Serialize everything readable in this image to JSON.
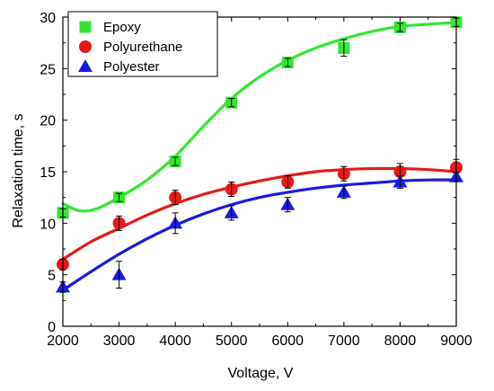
{
  "chart_data": {
    "type": "scatter",
    "xlabel": "Voltage, V",
    "ylabel": "Relaxation time, s",
    "xlim": [
      2000,
      9000
    ],
    "ylim": [
      0,
      30
    ],
    "xticks": [
      2000,
      3000,
      4000,
      5000,
      6000,
      7000,
      8000,
      9000
    ],
    "yticks": [
      0,
      5,
      10,
      15,
      20,
      25,
      30
    ],
    "legend_position": "top-left",
    "grid": false,
    "series": [
      {
        "name": "Epoxy",
        "marker": "square",
        "color": "#33e633",
        "line_color": "#33e633",
        "x": [
          2000,
          3000,
          4000,
          5000,
          6000,
          7000,
          8000,
          9000
        ],
        "y": [
          11.0,
          12.5,
          16.0,
          21.7,
          25.6,
          27.0,
          29.0,
          29.5
        ],
        "err": [
          0.4,
          0.4,
          0.4,
          0.4,
          0.4,
          0.8,
          0.4,
          0.4
        ],
        "fit_x": [
          2000,
          2300,
          2600,
          3000,
          3500,
          4000,
          4500,
          5000,
          5500,
          6000,
          6500,
          7000,
          7500,
          8000,
          8500,
          9000
        ],
        "fit_y": [
          11.9,
          11.2,
          11.4,
          12.5,
          14.2,
          16.5,
          19.4,
          22.1,
          24.2,
          25.8,
          27.0,
          27.9,
          28.6,
          29.1,
          29.3,
          29.5
        ]
      },
      {
        "name": "Polyurethane",
        "marker": "circle",
        "color": "#e61919",
        "line_color": "#e61919",
        "x": [
          2000,
          3000,
          4000,
          5000,
          6000,
          7000,
          8000,
          9000
        ],
        "y": [
          6.0,
          10.0,
          12.5,
          13.3,
          14.0,
          14.8,
          15.0,
          15.4
        ],
        "err": [
          0.5,
          0.7,
          0.7,
          0.7,
          0.6,
          0.7,
          0.8,
          0.8
        ],
        "fit_x": [
          2000,
          2500,
          3000,
          3500,
          4000,
          4500,
          5000,
          5500,
          6000,
          6500,
          7000,
          7500,
          8000,
          8500,
          9000
        ],
        "fit_y": [
          6.5,
          8.2,
          9.5,
          10.8,
          11.9,
          12.8,
          13.5,
          14.1,
          14.6,
          15.0,
          15.2,
          15.3,
          15.3,
          15.2,
          15.0
        ]
      },
      {
        "name": "Polyester",
        "marker": "triangle",
        "color": "#1a1ae6",
        "line_color": "#1a1ae6",
        "x": [
          2000,
          3000,
          4000,
          5000,
          6000,
          7000,
          8000,
          9000
        ],
        "y": [
          3.8,
          5.0,
          10.0,
          11.0,
          11.8,
          13.0,
          14.0,
          14.5
        ],
        "err": [
          0.5,
          1.3,
          1.0,
          0.7,
          0.7,
          0.6,
          0.6,
          0.4
        ],
        "fit_x": [
          2000,
          2500,
          3000,
          3500,
          4000,
          4500,
          5000,
          5500,
          6000,
          6500,
          7000,
          7500,
          8000,
          8500,
          9000
        ],
        "fit_y": [
          3.5,
          5.3,
          7.0,
          8.5,
          9.8,
          10.9,
          11.8,
          12.5,
          13.0,
          13.4,
          13.7,
          13.9,
          14.1,
          14.2,
          14.2
        ]
      }
    ]
  }
}
